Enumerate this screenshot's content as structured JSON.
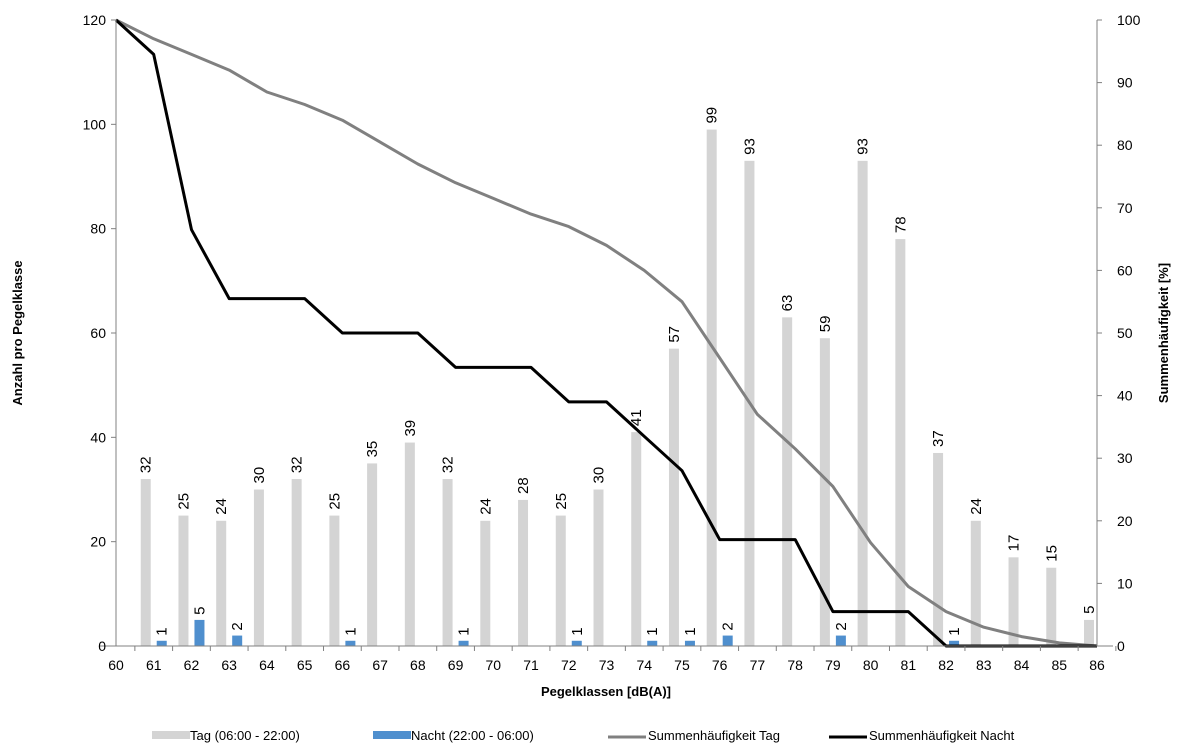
{
  "chart_data": {
    "type": "bar",
    "title": "",
    "xlabel": "Pegelklassen  [dB(A)]",
    "ylabel": "Anzahl pro Pegelklasse",
    "y2label": "Summenhäufigkeit  [%]",
    "categories": [
      "60",
      "61",
      "62",
      "63",
      "64",
      "65",
      "66",
      "67",
      "68",
      "69",
      "70",
      "71",
      "72",
      "73",
      "74",
      "75",
      "76",
      "77",
      "78",
      "79",
      "80",
      "81",
      "82",
      "83",
      "84",
      "85",
      "86"
    ],
    "ylim": [
      0,
      120
    ],
    "y2lim": [
      0,
      100
    ],
    "y_ticks": [
      0,
      20,
      40,
      60,
      80,
      100,
      120
    ],
    "y2_ticks": [
      0,
      10,
      20,
      30,
      40,
      50,
      60,
      70,
      80,
      90,
      100
    ],
    "series": [
      {
        "name": "Tag (06:00 - 22:00)",
        "kind": "bar",
        "axis": "left",
        "color": "#d4d4d4",
        "values": [
          null,
          32,
          25,
          24,
          30,
          32,
          25,
          35,
          39,
          32,
          24,
          28,
          25,
          30,
          41,
          57,
          99,
          93,
          63,
          59,
          93,
          78,
          37,
          24,
          17,
          15,
          5
        ]
      },
      {
        "name": "Nacht (22:00 - 06:00)",
        "kind": "bar",
        "axis": "left",
        "color": "#4f8fce",
        "values": [
          null,
          1,
          5,
          2,
          null,
          null,
          1,
          null,
          null,
          1,
          null,
          null,
          1,
          null,
          1,
          1,
          2,
          null,
          null,
          2,
          null,
          null,
          1,
          null,
          null,
          null,
          null
        ]
      },
      {
        "name": "Summenhäufigkeit Tag",
        "kind": "line",
        "axis": "right",
        "color": "#808080",
        "values": [
          100,
          97,
          94.5,
          92,
          88.5,
          86.5,
          84,
          80.5,
          77,
          74,
          71.5,
          69,
          67,
          64,
          60,
          55,
          46,
          37,
          31.5,
          25.5,
          16.5,
          9.5,
          5.5,
          3,
          1.5,
          0.5,
          0
        ]
      },
      {
        "name": "Summenhäufigkeit Nacht",
        "kind": "line",
        "axis": "right",
        "color": "#000000",
        "values": [
          100,
          94.5,
          66.5,
          55.5,
          55.5,
          55.5,
          50,
          50,
          50,
          44.5,
          44.5,
          44.5,
          39,
          39,
          33.5,
          28,
          17,
          17,
          17,
          5.5,
          5.5,
          5.5,
          0,
          0,
          0,
          0,
          0
        ]
      }
    ],
    "legend_position": "bottom",
    "grid": false
  }
}
